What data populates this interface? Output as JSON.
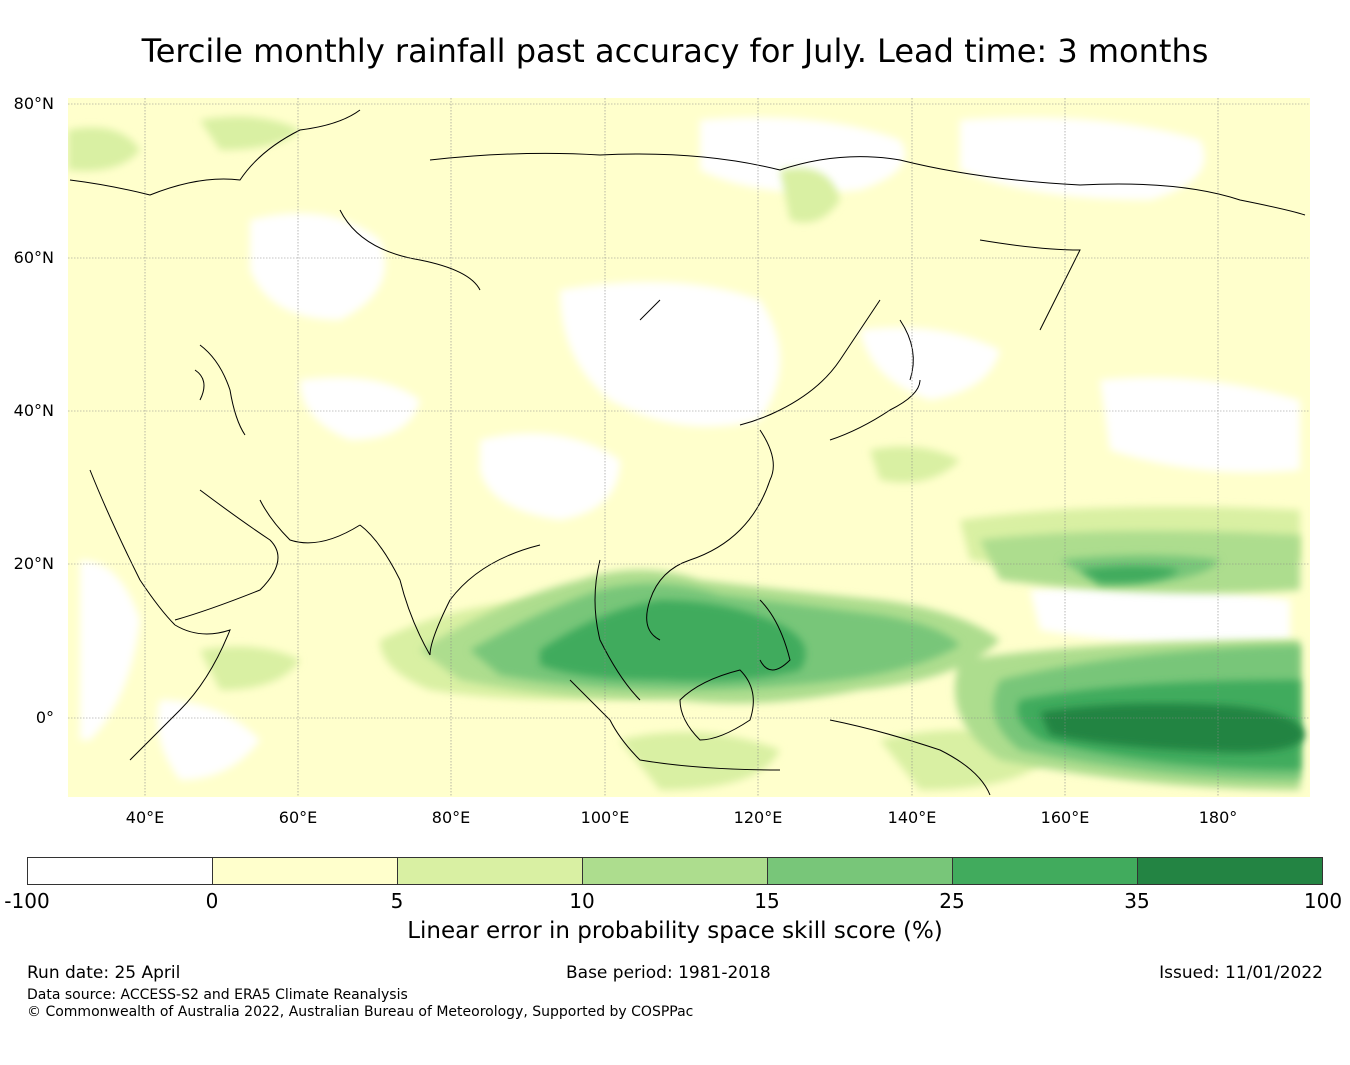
{
  "title": "Tercile monthly rainfall past accuracy for July. Lead time: 3 months",
  "map": {
    "lat_labels": [
      "80°N",
      "60°N",
      "40°N",
      "20°N",
      "0°"
    ],
    "lon_labels": [
      "40°E",
      "60°E",
      "80°E",
      "100°E",
      "120°E",
      "140°E",
      "160°E",
      "180°"
    ],
    "extent": {
      "lon": [
        30,
        192
      ],
      "lat": [
        -10,
        80
      ]
    },
    "colors": {
      "ocean_land_base": "#ffffcc",
      "level_neg": "#ffffff",
      "level_0_5": "#ffffcc",
      "level_5_10": "#d9f0a3",
      "level_10_15": "#addd8e",
      "level_15_25": "#78c679",
      "level_25_35": "#41ab5d",
      "level_35_100": "#238443"
    }
  },
  "colorbar": {
    "ticks": [
      "-100",
      "0",
      "5",
      "10",
      "15",
      "25",
      "35",
      "100"
    ],
    "colors": [
      "#ffffff",
      "#ffffcc",
      "#d9f0a3",
      "#addd8e",
      "#78c679",
      "#41ab5d",
      "#238443"
    ],
    "label": "Linear error in probability space skill score (%)"
  },
  "footer": {
    "run_date": "Run date: 25 April",
    "base_period": "Base period: 1981-2018",
    "issued": "Issued: 11/01/2022",
    "data_source": "Data source: ACCESS-S2 and ERA5 Climate Reanalysis",
    "copyright": "© Commonwealth of Australia 2022, Australian Bureau of Meteorology, Supported by COSPPac"
  }
}
